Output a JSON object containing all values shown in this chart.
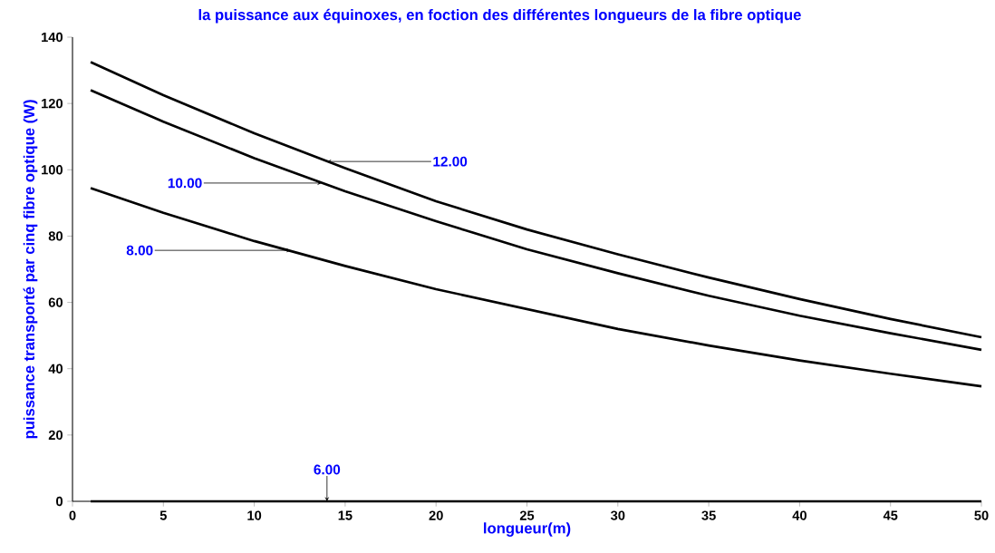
{
  "chart_data": {
    "type": "line",
    "title": "la puissance aux équinoxes, en foction des différentes longueurs de la fibre optique",
    "xlabel": "longueur(m)",
    "ylabel": "puissance transporté par cinq fibre optique (W)",
    "x": [
      1,
      5,
      10,
      15,
      20,
      25,
      30,
      35,
      40,
      45,
      50
    ],
    "series": [
      {
        "color": "#000000",
        "values": [
          132.5,
          122.5,
          111,
          100.5,
          90.5,
          82,
          74.5,
          67.5,
          61,
          55,
          49.5
        ]
      },
      {
        "color": "#000000",
        "values": [
          124,
          114.5,
          103.5,
          93.5,
          84.5,
          76,
          68.8,
          62,
          56,
          50.7,
          45.7
        ]
      },
      {
        "color": "#000000",
        "values": [
          94.5,
          87,
          78.5,
          71,
          64,
          58,
          52,
          47,
          42.5,
          38.5,
          34.7
        ]
      },
      {
        "color": "#000000",
        "values": [
          0,
          0,
          0,
          0,
          0,
          0,
          0,
          0,
          0,
          0,
          0
        ]
      }
    ],
    "annotations": [
      {
        "text": "12.00",
        "x": 14,
        "y": 102.5
      },
      {
        "text": "10.00",
        "x": 13.7,
        "y": 96
      },
      {
        "text": "8.00",
        "x": 12,
        "y": 75.7
      },
      {
        "text": "6.00",
        "x": 14,
        "y": 0
      }
    ],
    "xlim": [
      0,
      50
    ],
    "ylim": [
      0,
      140
    ],
    "xticks": [
      0,
      5,
      10,
      15,
      20,
      25,
      30,
      35,
      40,
      45,
      50
    ],
    "yticks": [
      0,
      20,
      40,
      60,
      80,
      100,
      120,
      140
    ],
    "grid": false,
    "marker": "none",
    "line_style": "solid"
  }
}
